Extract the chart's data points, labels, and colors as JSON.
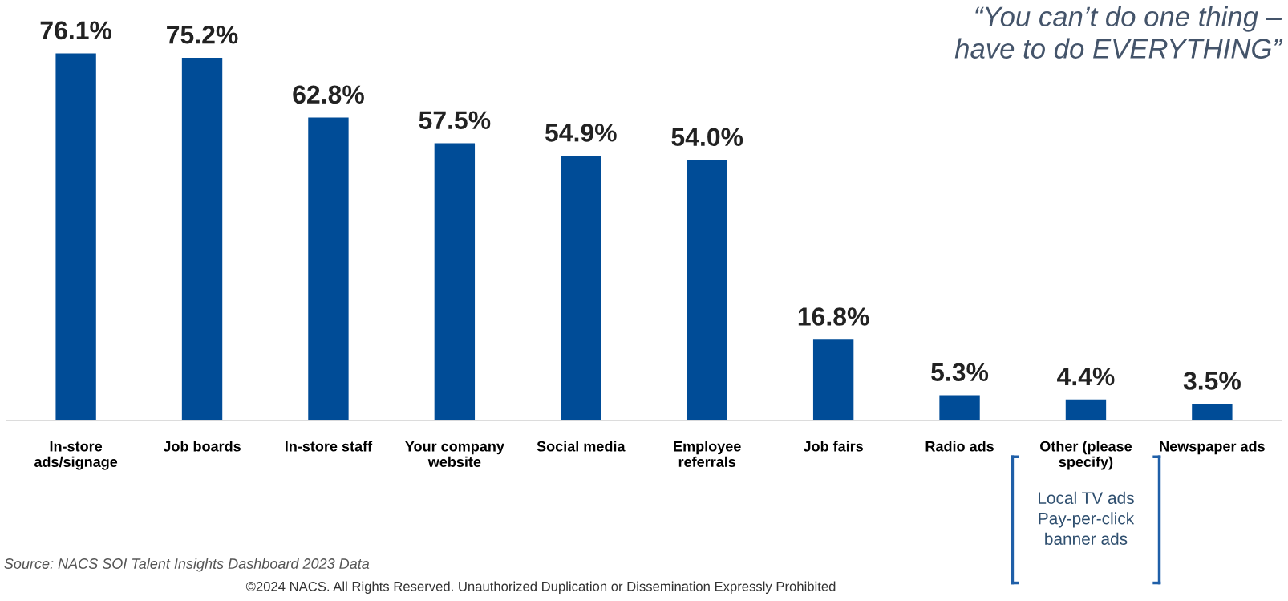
{
  "chart_data": {
    "type": "bar",
    "categories": [
      "In-store\nads/signage",
      "Job boards",
      "In-store staff",
      "Your company\nwebsite",
      "Social media",
      "Employee\nreferrals",
      "Job fairs",
      "Radio ads",
      "Other (please\nspecify)",
      "Newspaper ads"
    ],
    "values": [
      76.1,
      75.2,
      62.8,
      57.5,
      54.9,
      54.0,
      16.8,
      5.3,
      4.4,
      3.5
    ],
    "value_labels": [
      "76.1%",
      "75.2%",
      "62.8%",
      "57.5%",
      "54.9%",
      "54.0%",
      "16.8%",
      "5.3%",
      "4.4%",
      "3.5%"
    ],
    "color": "#004c97",
    "grid": false,
    "legend": false,
    "annotations": [
      "“You can’t do one thing –\nhave to do EVERYTHING”",
      "Local TV ads\nPay-per-click\nbanner ads",
      "Source: NACS SOI Talent Insights Dashboard 2023 Data",
      "©2024 NACS. All Rights Reserved. Unauthorized Duplication or Dissemination Expressly Prohibited"
    ]
  }
}
